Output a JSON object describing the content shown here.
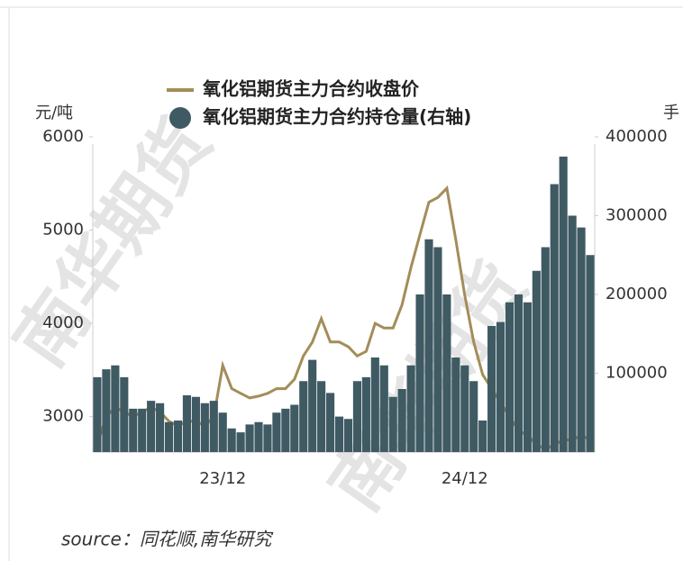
{
  "chart_data": {
    "type": "line_bar",
    "watermark": "南华期货",
    "y_axis_label": "元/吨",
    "y2_axis_label": "手",
    "source": "source：同花顺,南华研究",
    "categories": [
      null,
      null,
      null,
      null,
      null,
      null,
      null,
      null,
      null,
      null,
      null,
      null,
      null,
      null,
      "23/12",
      null,
      null,
      null,
      null,
      null,
      null,
      null,
      null,
      null,
      null,
      null,
      null,
      null,
      null,
      null,
      null,
      null,
      null,
      null,
      null,
      null,
      null,
      null,
      null,
      null,
      null,
      "24/12",
      null,
      null,
      null,
      null,
      null,
      null,
      null,
      null,
      null,
      null,
      null,
      null,
      null,
      null
    ],
    "series": [
      {
        "name": "氧化铝期货主力合约收盘价",
        "type": "line",
        "color": "#a38d58",
        "values": [
          2700,
          3000,
          3100,
          3050,
          3000,
          3050,
          3100,
          3050,
          2950,
          2900,
          2950,
          2950,
          2900,
          3000,
          3550,
          3300,
          3250,
          3200,
          3220,
          3250,
          3300,
          3300,
          3400,
          3650,
          3800,
          4050,
          3800,
          3800,
          3750,
          3650,
          3700,
          4000,
          3950,
          3950,
          4200,
          4600,
          4950,
          5300,
          5350,
          5450,
          4900,
          4300,
          3800,
          3450,
          3300,
          3150,
          3000,
          2850,
          2800,
          2700,
          2650,
          2700,
          2750,
          2750,
          2800,
          2750
        ]
      },
      {
        "name": "氧化铝期货主力合约持仓量(右轴)",
        "type": "bar",
        "axis": "y2",
        "color": "#3f5a63",
        "values": [
          95000,
          105000,
          110000,
          95000,
          55000,
          55000,
          65000,
          62000,
          38000,
          40000,
          72000,
          70000,
          62000,
          65000,
          50000,
          30000,
          25000,
          35000,
          38000,
          35000,
          50000,
          55000,
          60000,
          90000,
          117000,
          90000,
          75000,
          45000,
          42000,
          90000,
          95000,
          120000,
          110000,
          70000,
          80000,
          110000,
          200000,
          270000,
          260000,
          200000,
          120000,
          110000,
          90000,
          40000,
          160000,
          165000,
          190000,
          200000,
          190000,
          230000,
          260000,
          340000,
          375000,
          300000,
          285000,
          250000
        ]
      }
    ],
    "ylim": [
      2620,
      6000
    ],
    "yticks": [
      3000,
      4000,
      5000,
      6000
    ],
    "y2lim": [
      0,
      400000
    ],
    "y2ticks": [
      100000,
      200000,
      300000,
      400000
    ]
  }
}
